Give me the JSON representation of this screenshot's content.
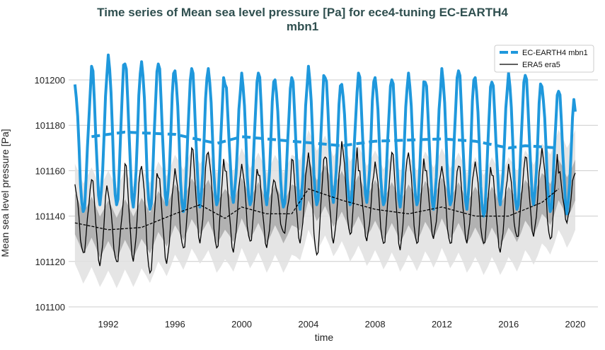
{
  "chart_data": {
    "type": "line",
    "title_line1": "Time series of Mean sea level pressure [Pa] for ece4-tuning EC-EARTH4",
    "title_line2": "mbn1",
    "xlabel": "time",
    "ylabel": "Mean sea level pressure [Pa]",
    "xlim": [
      1989.5,
      2021.3
    ],
    "ylim": [
      101095,
      101218
    ],
    "xticks": [
      "1992",
      "1996",
      "2000",
      "2004",
      "2008",
      "2012",
      "2016",
      "2020"
    ],
    "yticks": [
      "101100",
      "101120",
      "101140",
      "101160",
      "101180",
      "101200"
    ],
    "grid": "horizontal",
    "legend_position": "top-right",
    "years": [
      1990,
      1991,
      1992,
      1993,
      1994,
      1995,
      1996,
      1997,
      1998,
      1999,
      2000,
      2001,
      2002,
      2003,
      2004,
      2005,
      2006,
      2007,
      2008,
      2009,
      2010,
      2011,
      2012,
      2013,
      2014,
      2015,
      2016,
      2017,
      2018,
      2019
    ],
    "series": [
      {
        "name": "EC-EARTH4 mbn1",
        "color": "#1f98dc",
        "style": "solid-thick",
        "annual_max": [
          101198,
          101206,
          101211,
          101207,
          101208,
          101207,
          101204,
          101205,
          101205,
          101198,
          101203,
          101203,
          101200,
          101201,
          101206,
          101201,
          101198,
          101203,
          101201,
          101200,
          101203,
          101199,
          101205,
          101204,
          101201,
          101199,
          101203,
          101202,
          101197,
          101195
        ],
        "annual_min": [
          101142,
          101145,
          101145,
          101144,
          101143,
          101145,
          101142,
          101144,
          101145,
          101146,
          101145,
          101145,
          101144,
          101143,
          101145,
          101146,
          101145,
          101146,
          101145,
          101144,
          101145,
          101143,
          101145,
          101143,
          101140,
          101145,
          101143,
          101145,
          101142,
          101141
        ],
        "end_value": 101186,
        "running_mean": {
          "x": [
            1991,
            1993,
            1996,
            1998.5,
            2000,
            2003,
            2006,
            2008,
            2012,
            2014,
            2016,
            2017,
            2019
          ],
          "y": [
            101175,
            101177,
            101176,
            101172,
            101175,
            101173,
            101171,
            101173,
            101174,
            101173,
            101170,
            101171,
            101170
          ]
        }
      },
      {
        "name": "ERA5 era5",
        "color": "#000000",
        "style": "solid-thin",
        "annual_max": [
          101154,
          101156,
          101150,
          101163,
          101162,
          101157,
          101161,
          101170,
          101168,
          101160,
          101163,
          101158,
          101155,
          101165,
          101168,
          101166,
          101173,
          101160,
          101164,
          101168,
          101168,
          101160,
          101162,
          101162,
          101164,
          101158,
          101163,
          101166,
          101170,
          101159
        ],
        "annual_min": [
          101124,
          101118,
          101120,
          101120,
          101115,
          101119,
          101126,
          101128,
          101126,
          101124,
          101129,
          101126,
          101133,
          101128,
          101123,
          101128,
          101132,
          101129,
          101128,
          101125,
          101128,
          101130,
          101128,
          101128,
          101128,
          101124,
          101131,
          101131,
          101130,
          101137
        ],
        "end_value": 101159,
        "running_mean": {
          "x": [
            1990,
            1992,
            1994,
            1996,
            1997.5,
            1999,
            2000,
            2001.5,
            2003,
            2004,
            2006,
            2008,
            2010,
            2012,
            2014,
            2016,
            2018,
            2019
          ],
          "y": [
            101137,
            101134,
            101135,
            101141,
            101145,
            101139,
            101144,
            101141,
            101141,
            101152,
            101147,
            101143,
            101141,
            101144,
            101140,
            101140,
            101146,
            101152
          ]
        },
        "band_inner_halfwidth": 9,
        "band_outer_halfwidth": 22
      }
    ]
  }
}
